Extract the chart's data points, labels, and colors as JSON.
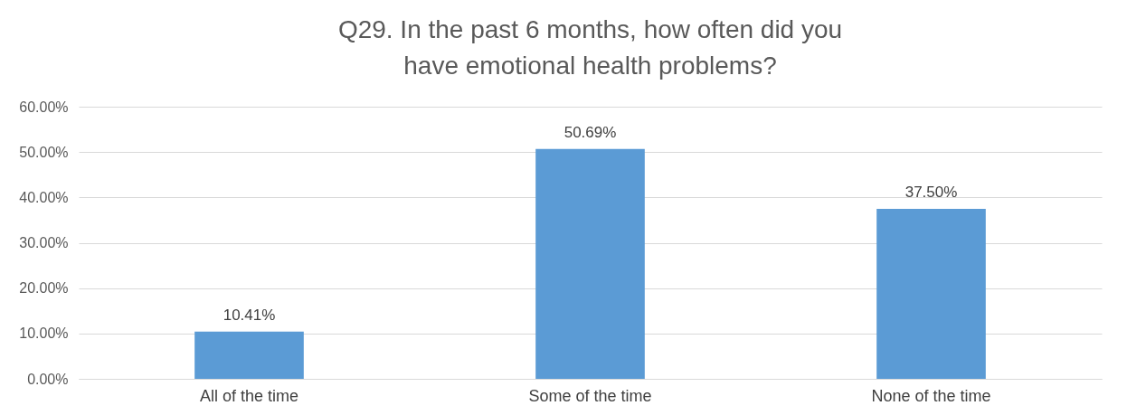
{
  "chart_data": {
    "type": "bar",
    "title": "Q29. In the past 6 months, how often did you have emotional health problems?",
    "categories": [
      "All of the time",
      "Some of the time",
      "None of the time"
    ],
    "values": [
      10.41,
      50.69,
      37.5
    ],
    "value_labels": [
      "10.41%",
      "50.69%",
      "37.50%"
    ],
    "color": "#5b9bd5",
    "ylim": [
      0,
      60
    ],
    "yticks": [
      {
        "value": 0,
        "label": "0.00%"
      },
      {
        "value": 10,
        "label": "10.00%"
      },
      {
        "value": 20,
        "label": "20.00%"
      },
      {
        "value": 30,
        "label": "30.00%"
      },
      {
        "value": 40,
        "label": "40.00%"
      },
      {
        "value": 50,
        "label": "50.00%"
      },
      {
        "value": 60,
        "label": "60.00%"
      }
    ],
    "grid": "y"
  }
}
